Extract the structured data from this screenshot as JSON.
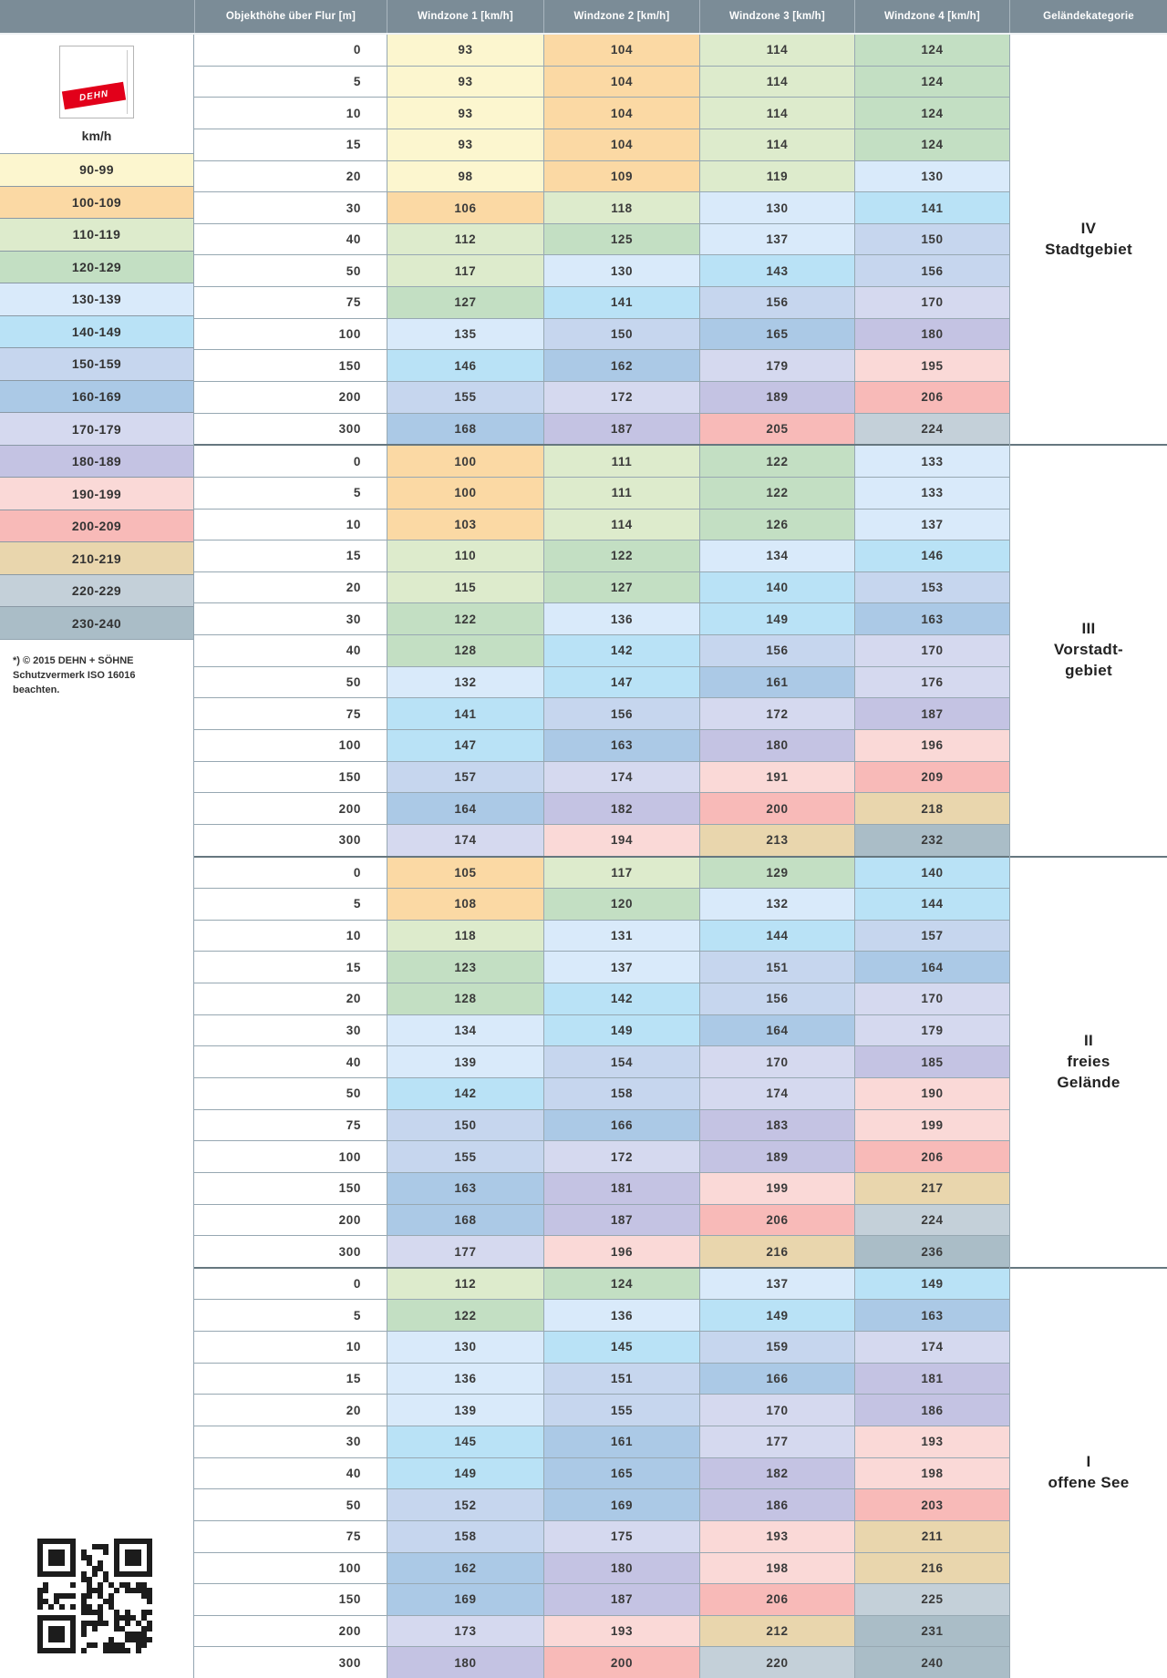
{
  "header": {
    "columns": [
      "",
      "Objekthöhe über Flur [m]",
      "Windzone 1 [km/h]",
      "Windzone 2 [km/h]",
      "Windzone 3 [km/h]",
      "Windzone 4 [km/h]",
      "Geländekategorie"
    ]
  },
  "legend": {
    "logo_text": "DEHN",
    "unit_label": "km/h",
    "note": "*) © 2015 DEHN + SÖHNE\nSchutzvermerk ISO 16016\nbeachten.",
    "ranges": [
      {
        "label": "90-99",
        "min": 90,
        "max": 99,
        "color": "#fcf6cf"
      },
      {
        "label": "100-109",
        "min": 100,
        "max": 109,
        "color": "#fbd9a4"
      },
      {
        "label": "110-119",
        "min": 110,
        "max": 119,
        "color": "#ddebcc"
      },
      {
        "label": "120-129",
        "min": 120,
        "max": 129,
        "color": "#c3dfc3"
      },
      {
        "label": "130-139",
        "min": 130,
        "max": 139,
        "color": "#d9eafa"
      },
      {
        "label": "140-149",
        "min": 140,
        "max": 149,
        "color": "#b9e2f6"
      },
      {
        "label": "150-159",
        "min": 150,
        "max": 159,
        "color": "#c6d6ee"
      },
      {
        "label": "160-169",
        "min": 160,
        "max": 169,
        "color": "#abc9e6"
      },
      {
        "label": "170-179",
        "min": 170,
        "max": 179,
        "color": "#d5d9ef"
      },
      {
        "label": "180-189",
        "min": 180,
        "max": 189,
        "color": "#c4c3e3"
      },
      {
        "label": "190-199",
        "min": 190,
        "max": 199,
        "color": "#fad9d7"
      },
      {
        "label": "200-209",
        "min": 200,
        "max": 209,
        "color": "#f8bab8"
      },
      {
        "label": "210-219",
        "min": 210,
        "max": 219,
        "color": "#e9d6ad"
      },
      {
        "label": "220-229",
        "min": 220,
        "max": 229,
        "color": "#c4d0d9"
      },
      {
        "label": "230-240",
        "min": 230,
        "max": 240,
        "color": "#aabdc7"
      }
    ]
  },
  "sections": [
    {
      "category": "IV\nStadtgebiet",
      "rows": [
        [
          0,
          93,
          104,
          114,
          124
        ],
        [
          5,
          93,
          104,
          114,
          124
        ],
        [
          10,
          93,
          104,
          114,
          124
        ],
        [
          15,
          93,
          104,
          114,
          124
        ],
        [
          20,
          98,
          109,
          119,
          130
        ],
        [
          30,
          106,
          118,
          130,
          141
        ],
        [
          40,
          112,
          125,
          137,
          150
        ],
        [
          50,
          117,
          130,
          143,
          156
        ],
        [
          75,
          127,
          141,
          156,
          170
        ],
        [
          100,
          135,
          150,
          165,
          180
        ],
        [
          150,
          146,
          162,
          179,
          195
        ],
        [
          200,
          155,
          172,
          189,
          206
        ],
        [
          300,
          168,
          187,
          205,
          224
        ]
      ]
    },
    {
      "category": "III\nVorstadt-\ngebiet",
      "rows": [
        [
          0,
          100,
          111,
          122,
          133
        ],
        [
          5,
          100,
          111,
          122,
          133
        ],
        [
          10,
          103,
          114,
          126,
          137
        ],
        [
          15,
          110,
          122,
          134,
          146
        ],
        [
          20,
          115,
          127,
          140,
          153
        ],
        [
          30,
          122,
          136,
          149,
          163
        ],
        [
          40,
          128,
          142,
          156,
          170
        ],
        [
          50,
          132,
          147,
          161,
          176
        ],
        [
          75,
          141,
          156,
          172,
          187
        ],
        [
          100,
          147,
          163,
          180,
          196
        ],
        [
          150,
          157,
          174,
          191,
          209
        ],
        [
          200,
          164,
          182,
          200,
          218
        ],
        [
          300,
          174,
          194,
          213,
          232
        ]
      ]
    },
    {
      "category": "II\nfreies\nGelände",
      "rows": [
        [
          0,
          105,
          117,
          129,
          140
        ],
        [
          5,
          108,
          120,
          132,
          144
        ],
        [
          10,
          118,
          131,
          144,
          157
        ],
        [
          15,
          123,
          137,
          151,
          164
        ],
        [
          20,
          128,
          142,
          156,
          170
        ],
        [
          30,
          134,
          149,
          164,
          179
        ],
        [
          40,
          139,
          154,
          170,
          185
        ],
        [
          50,
          142,
          158,
          174,
          190
        ],
        [
          75,
          150,
          166,
          183,
          199
        ],
        [
          100,
          155,
          172,
          189,
          206
        ],
        [
          150,
          163,
          181,
          199,
          217
        ],
        [
          200,
          168,
          187,
          206,
          224
        ],
        [
          300,
          177,
          196,
          216,
          236
        ]
      ]
    },
    {
      "category": "I\noffene See",
      "rows": [
        [
          0,
          112,
          124,
          137,
          149
        ],
        [
          5,
          122,
          136,
          149,
          163
        ],
        [
          10,
          130,
          145,
          159,
          174
        ],
        [
          15,
          136,
          151,
          166,
          181
        ],
        [
          20,
          139,
          155,
          170,
          186
        ],
        [
          30,
          145,
          161,
          177,
          193
        ],
        [
          40,
          149,
          165,
          182,
          198
        ],
        [
          50,
          152,
          169,
          186,
          203
        ],
        [
          75,
          158,
          175,
          193,
          211
        ],
        [
          100,
          162,
          180,
          198,
          216
        ],
        [
          150,
          169,
          187,
          206,
          225
        ],
        [
          200,
          173,
          193,
          212,
          231
        ],
        [
          300,
          180,
          200,
          220,
          240
        ]
      ]
    }
  ]
}
